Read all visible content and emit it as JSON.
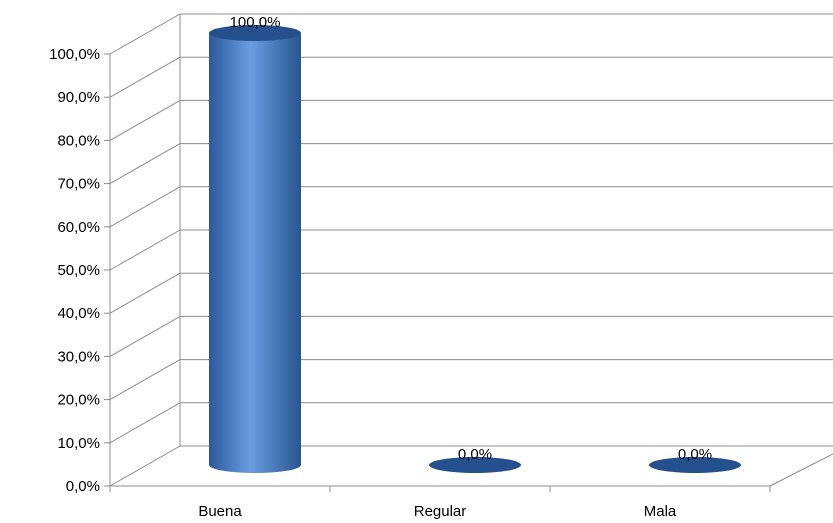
{
  "chart_data": {
    "type": "bar",
    "style": "3d-cylinder",
    "categories": [
      "Buena",
      "Regular",
      "Mala"
    ],
    "values": [
      100.0,
      0.0,
      0.0
    ],
    "data_labels": [
      "100,0%",
      "0,0%",
      "0,0%"
    ],
    "ylim": [
      0,
      100
    ],
    "yticks": [
      "0,0%",
      "10,0%",
      "20,0%",
      "30,0%",
      "40,0%",
      "50,0%",
      "60,0%",
      "70,0%",
      "80,0%",
      "90,0%",
      "100,0%"
    ],
    "grid": true,
    "legend": "none",
    "colors": {
      "bar": "#4a7ec4",
      "bar_dark": "#24508e",
      "grid": "#8c8c8c"
    }
  }
}
